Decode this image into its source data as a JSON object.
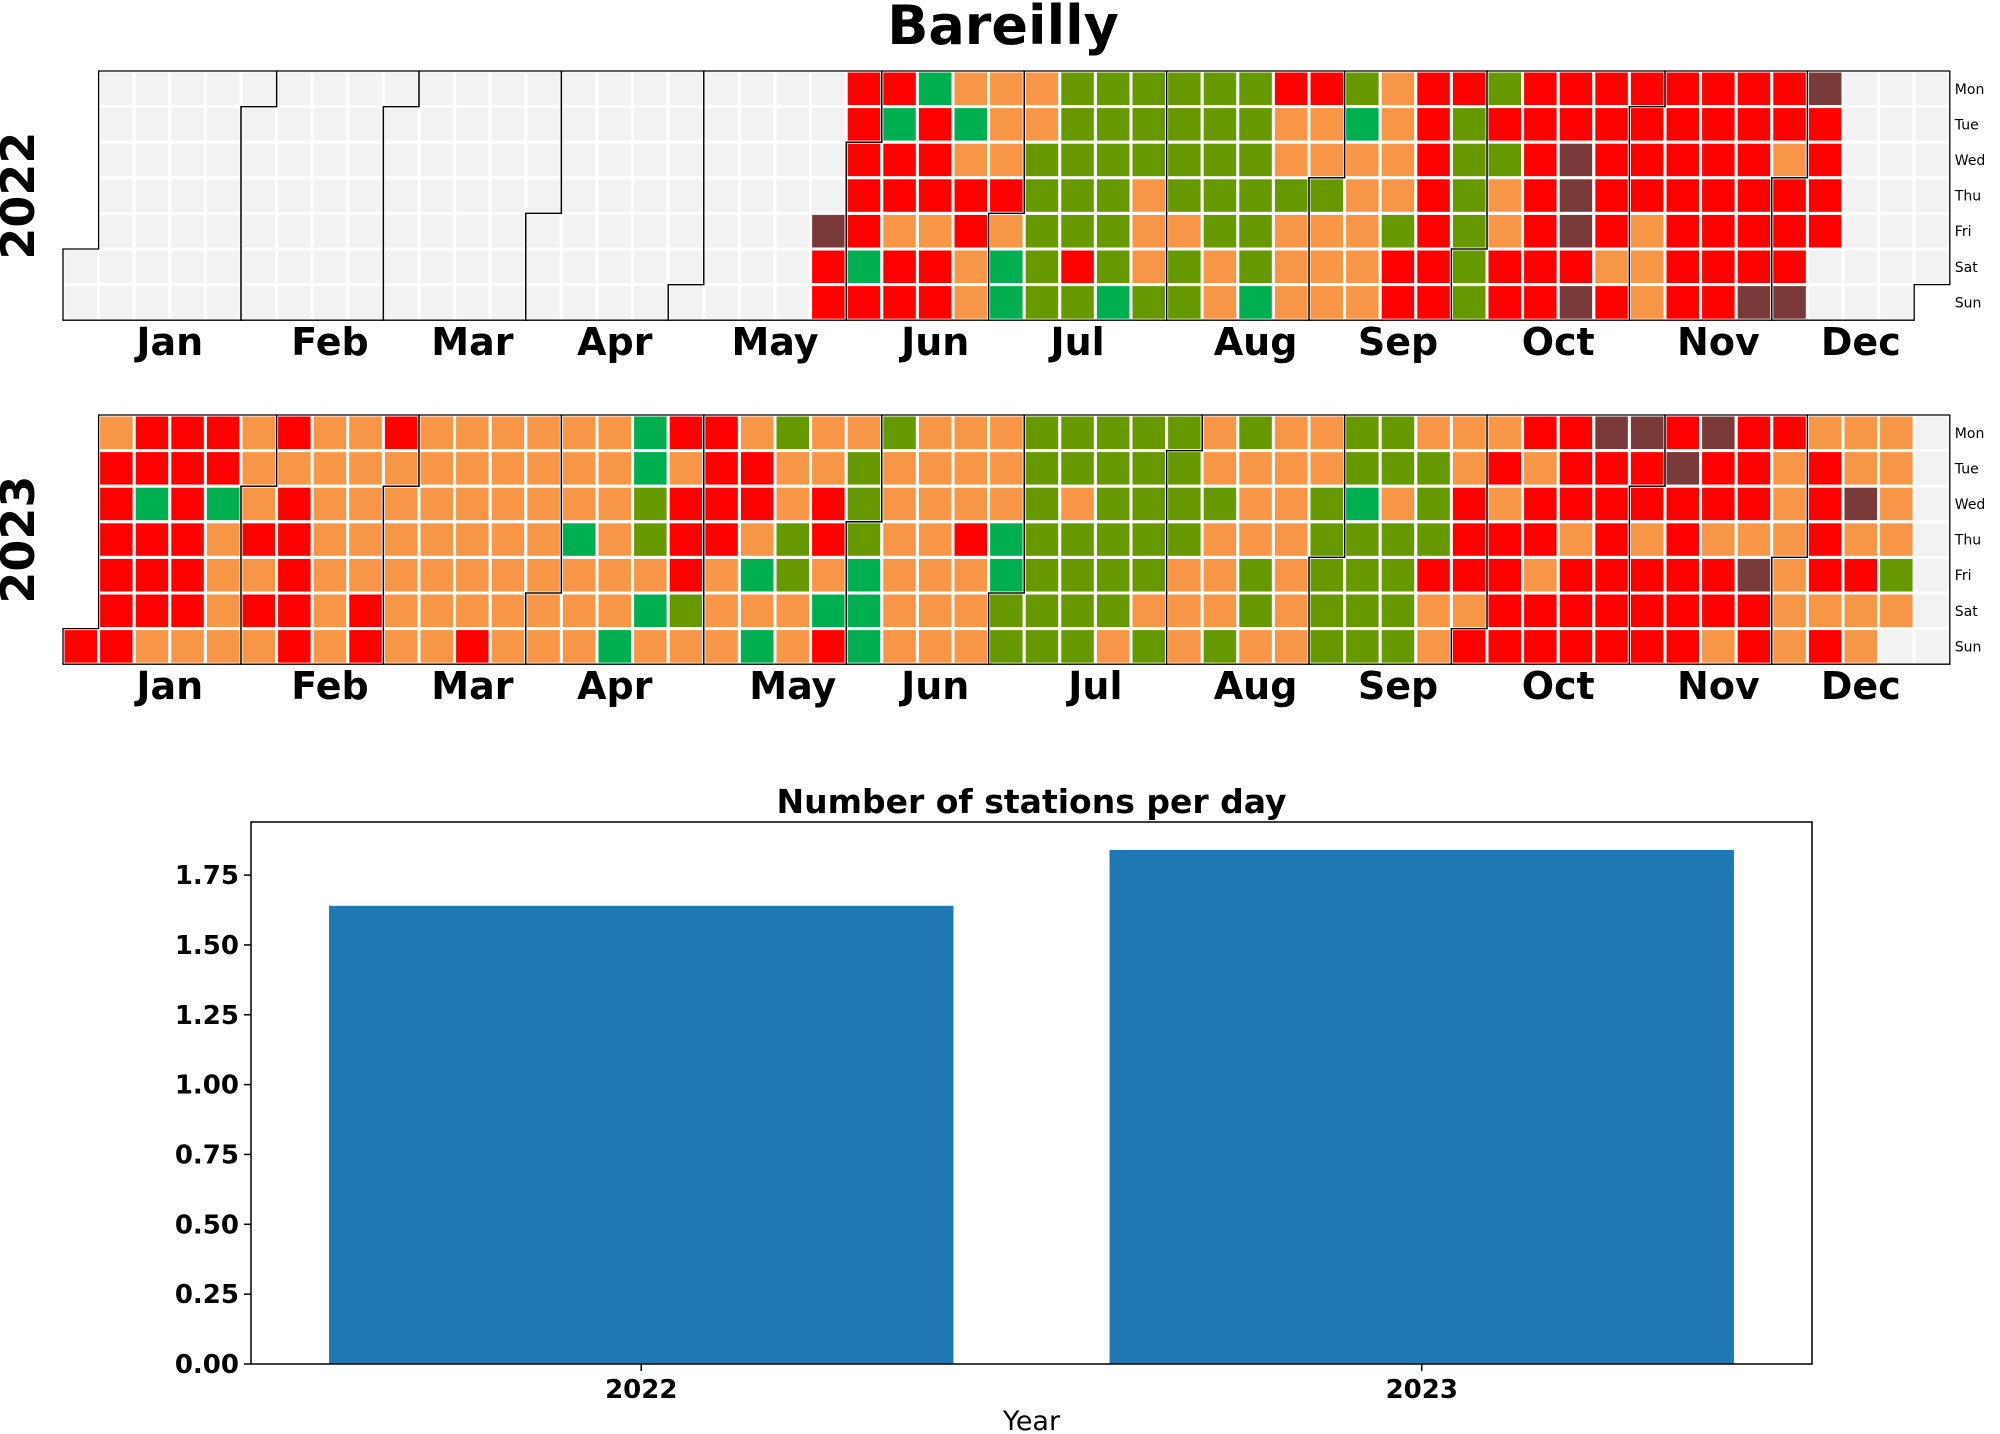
{
  "title": "Bareilly",
  "palette": {
    "na": "#f2f2f2",
    "good": "#00b050",
    "satisfactory": "#669900",
    "moderate": "#f79646",
    "poor": "#ff0000",
    "very_poor": "#7b3a3a",
    "bar": "#1f77b4"
  },
  "weekdays": [
    "Mon",
    "Tue",
    "Wed",
    "Thu",
    "Fri",
    "Sat",
    "Sun"
  ],
  "chart_data": [
    {
      "type": "heatmap",
      "year": "2022",
      "year_label": "2022",
      "months": [
        "Jan",
        "Feb",
        "Mar",
        "Apr",
        "May",
        "Jun",
        "Jul",
        "Aug",
        "Sep",
        "Oct",
        "Nov",
        "Dec"
      ],
      "data_start": "2022-05-27",
      "category_codes": {
        "G": "good",
        "S": "satisfactory",
        "M": "moderate",
        "P": "poor",
        "V": "very_poor",
        "N": "na"
      },
      "daily_codes": "VPPPPPPPGPPGPPMPPGPPPMPPMGMPPMMMMMPMGGMMSSSSSSSSSSPSSSSSSSGSSSMMMSSSSSMSSSSSSSMMSSSSSSGPMMSMMMPMMSMMMSGMMMMMMMMMSPPPPPPPPPPSSSSSSSPSMMPPPPPPPPPPPVVVPVPPPPPMPPPPPMMMPPPPPPPPPPPPPPPPPPPPVPPMPPPVVPPPP"
    },
    {
      "type": "heatmap",
      "year": "2023",
      "year_label": "2023",
      "months": [
        "Jan",
        "Feb",
        "Mar",
        "Apr",
        "May",
        "Jun",
        "Jul",
        "Aug",
        "Sep",
        "Oct",
        "Nov",
        "Dec"
      ],
      "data_start": "2023-01-01",
      "category_codes": {
        "G": "good",
        "S": "satisfactory",
        "M": "moderate",
        "P": "poor",
        "V": "very_poor",
        "N": "na"
      },
      "daily_codes": "PMPPPPPPPPGPPPMPPPPPPMPPGMMMMMMMPMPMPMPPPPPMMMMMMMMMMMMPPPMMMMMMMMMMMMMMMMMMMPMMMMMMMMMMMMMMMMMGMMMMMMMMMGGGSSMGMPMPPPSMPPPPMMMMPPMGMGSMMSSMMMMPPMGPMSSSGGGSMMMMMMMMMMMMMMMMPMMMMMMGGSSSSSSSSSSSMSSSSSSSSSSMSSSSSMSSSSSMMMMMSMMMSSMMMSSMMMMMMMMMMSSSSSSSGSSSSSSMSSSSMSSSPMMMMPPPMPMPMPPPPPMPPMPPPPPMPPPVPPPPPPVPPMPPPPVPPPPPVPPMPPMPPPMVPPPMMMMMMMPPPPMPMMVMPMMMMMMSM"
    },
    {
      "type": "bar",
      "title": "Number of stations per day",
      "xlabel": "Year",
      "ylabel": "",
      "categories": [
        "2022",
        "2023"
      ],
      "values": [
        1.64,
        1.84
      ],
      "ylim": [
        0,
        1.94
      ],
      "yticks": [
        "0.00",
        "0.25",
        "0.50",
        "0.75",
        "1.00",
        "1.25",
        "1.50",
        "1.75"
      ],
      "grid": false
    }
  ]
}
